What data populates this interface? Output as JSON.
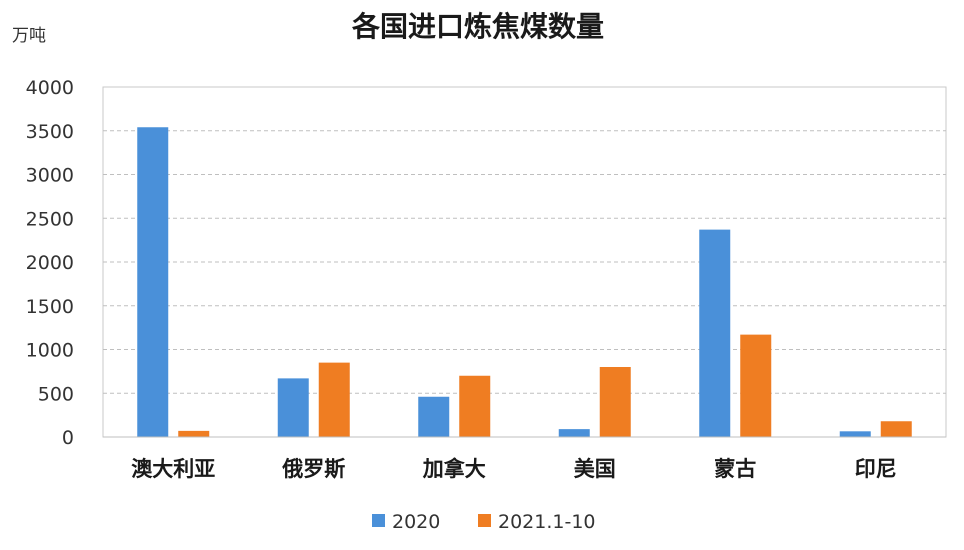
{
  "chart_data": {
    "type": "bar",
    "title": "各国进口炼焦煤数量",
    "ylabel": "万吨",
    "xlabel": "",
    "categories": [
      "澳大利亚",
      "俄罗斯",
      "加拿大",
      "美国",
      "蒙古",
      "印尼"
    ],
    "series": [
      {
        "name": "2020",
        "color": "#4a90d9",
        "values": [
          3540,
          670,
          460,
          90,
          2370,
          65
        ]
      },
      {
        "name": "2021.1-10",
        "color": "#ef7d22",
        "values": [
          70,
          850,
          700,
          800,
          1170,
          180
        ]
      }
    ],
    "ylim": [
      0,
      4000
    ],
    "yticks": [
      0,
      500,
      1000,
      1500,
      2000,
      2500,
      3000,
      3500,
      4000
    ],
    "grid": true,
    "legend_position": "bottom"
  }
}
